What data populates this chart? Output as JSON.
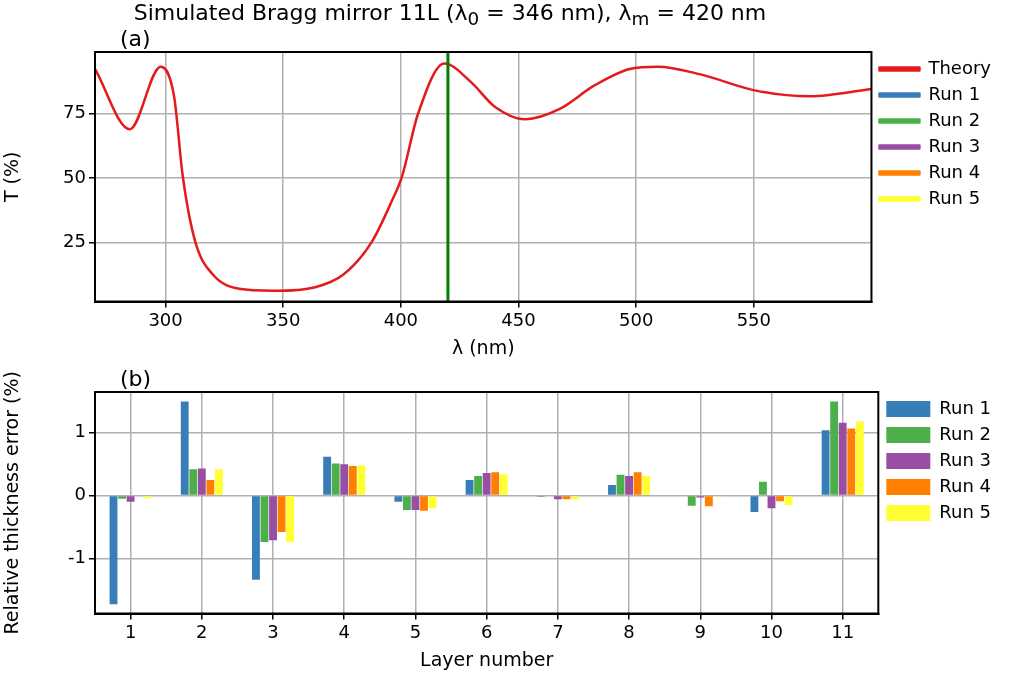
{
  "chart_data": [
    {
      "type": "line",
      "title": "Simulated Bragg mirror 11L (λ$_{0}$ = 346 nm), λ$_{m}$ = 420 nm",
      "xlabel": "λ (nm)",
      "ylabel": "T (%)",
      "annotations": [
        "(a)"
      ],
      "x": [
        270,
        284.8,
        297.9,
        303.6,
        307.3,
        312.6,
        320,
        332,
        345.6,
        363.6,
        375.7,
        387.7,
        396,
        400.5,
        407.2,
        418.5,
        429.7,
        440.2,
        453,
        467.3,
        482.3,
        497.3,
        509.3,
        527.3,
        551.4,
        573.9,
        600
      ],
      "series": [
        {
          "name": "Theory",
          "color": "#e41a1c",
          "values": [
            92.4,
            69,
            93.3,
            81.8,
            50.7,
            25.3,
            12.6,
            6.9,
            6.2,
            7.6,
            12.6,
            25.3,
            40.8,
            50.7,
            74.7,
            94.5,
            87.4,
            77.5,
            72.9,
            76.8,
            86,
            92.4,
            93.3,
            90.3,
            83.9,
            81.8,
            84.6
          ]
        },
        {
          "name": "Run 1",
          "color": "#377eb8",
          "values": [
            null,
            null,
            null,
            null,
            null,
            null,
            null,
            null,
            null,
            null,
            null,
            null,
            null,
            null,
            null,
            null,
            null,
            null,
            null,
            null,
            null,
            null,
            null,
            null,
            null,
            null,
            null
          ]
        },
        {
          "name": "Run 2",
          "color": "#4daf4a",
          "values": [
            null,
            null,
            null,
            null,
            null,
            null,
            null,
            null,
            null,
            null,
            null,
            null,
            null,
            null,
            null,
            null,
            null,
            null,
            null,
            null,
            null,
            null,
            null,
            null,
            null,
            null,
            null
          ]
        },
        {
          "name": "Run 3",
          "color": "#984ea3",
          "values": [
            null,
            null,
            null,
            null,
            null,
            null,
            null,
            null,
            null,
            null,
            null,
            null,
            null,
            null,
            null,
            null,
            null,
            null,
            null,
            null,
            null,
            null,
            null,
            null,
            null,
            null,
            null
          ]
        },
        {
          "name": "Run 4",
          "color": "#ff7f00",
          "values": [
            null,
            null,
            null,
            null,
            null,
            null,
            null,
            null,
            null,
            null,
            null,
            null,
            null,
            null,
            null,
            null,
            null,
            null,
            null,
            null,
            null,
            null,
            null,
            null,
            null,
            null,
            null
          ]
        },
        {
          "name": "Run 5",
          "color": "#ffff33",
          "values": [
            null,
            null,
            null,
            null,
            null,
            null,
            null,
            null,
            null,
            null,
            null,
            null,
            null,
            null,
            null,
            null,
            null,
            null,
            null,
            null,
            null,
            null,
            null,
            null,
            null,
            null,
            null
          ]
        }
      ],
      "xlim": [
        270,
        600
      ],
      "xticks": [
        300,
        350,
        400,
        450,
        500,
        550
      ],
      "ylim": [
        2,
        99
      ],
      "yticks": [
        25,
        50,
        75
      ],
      "ref_lines": [
        {
          "axis": "x",
          "value": 420,
          "color": "#008000"
        }
      ],
      "grid": true,
      "legend": "right",
      "marker": "none",
      "line_style": "solid"
    },
    {
      "type": "bar",
      "xlabel": "Layer number",
      "ylabel": "Relative thickness error (%)",
      "annotations": [
        "(b)"
      ],
      "categories": [
        "1",
        "2",
        "3",
        "4",
        "5",
        "6",
        "7",
        "8",
        "9",
        "10",
        "11"
      ],
      "series": [
        {
          "name": "Run 1",
          "color": "#377eb8",
          "values": [
            -1.73,
            1.5,
            -1.34,
            0.62,
            -0.1,
            0.25,
            -0.02,
            0.17,
            0,
            -0.26,
            1.04
          ]
        },
        {
          "name": "Run 2",
          "color": "#4daf4a",
          "values": [
            -0.05,
            0.42,
            -0.74,
            0.51,
            -0.23,
            0.31,
            0,
            0.33,
            -0.16,
            0.22,
            1.5
          ]
        },
        {
          "name": "Run 3",
          "color": "#984ea3",
          "values": [
            -0.1,
            0.43,
            -0.71,
            0.5,
            -0.23,
            0.36,
            -0.06,
            0.31,
            -0.03,
            -0.2,
            1.16
          ]
        },
        {
          "name": "Run 4",
          "color": "#ff7f00",
          "values": [
            0,
            0.25,
            -0.58,
            0.47,
            -0.24,
            0.37,
            -0.06,
            0.37,
            -0.17,
            -0.09,
            1.07
          ]
        },
        {
          "name": "Run 5",
          "color": "#ffff33",
          "values": [
            -0.04,
            0.42,
            -0.74,
            0.48,
            -0.2,
            0.34,
            -0.06,
            0.31,
            -0.02,
            -0.15,
            1.18
          ]
        }
      ],
      "ylim": [
        -1.88,
        1.65
      ],
      "yticks": [
        -1,
        0,
        1
      ],
      "grid": true,
      "legend": "right"
    }
  ]
}
